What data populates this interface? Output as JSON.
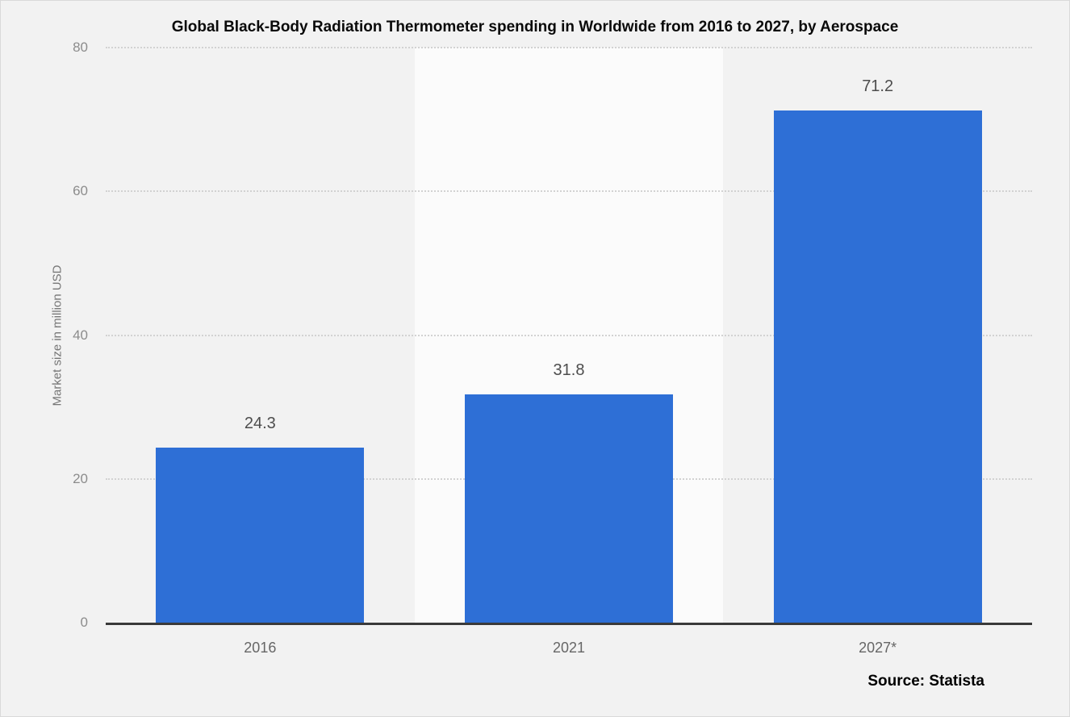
{
  "title": "Global Black-Body Radiation Thermometer spending in Worldwide from 2016 to 2027, by Aerospace",
  "source": "Source: Statista",
  "chart_data": {
    "type": "bar",
    "title": "Global Black-Body Radiation Thermometer spending in Worldwide from 2016 to 2027, by Aerospace",
    "categories": [
      "2016",
      "2021",
      "2027*"
    ],
    "values": [
      24.3,
      31.8,
      71.2
    ],
    "value_labels": [
      "24.3",
      "31.8",
      "71.2"
    ],
    "xlabel": "",
    "ylabel": "Market size in million USD",
    "ylim": [
      0,
      80
    ],
    "yticks": [
      0,
      20,
      40,
      60,
      80
    ],
    "grid": "horizontal-dotted",
    "legend": "none",
    "bar_color": "#2e6fd6",
    "canvas_color": "#f2f2f2",
    "plot_band_color": "#fbfbfb",
    "axis_line_color": "#3a3a3a",
    "tick_label_color": "#8c8c8c",
    "value_label_color": "#4d4d4d"
  }
}
